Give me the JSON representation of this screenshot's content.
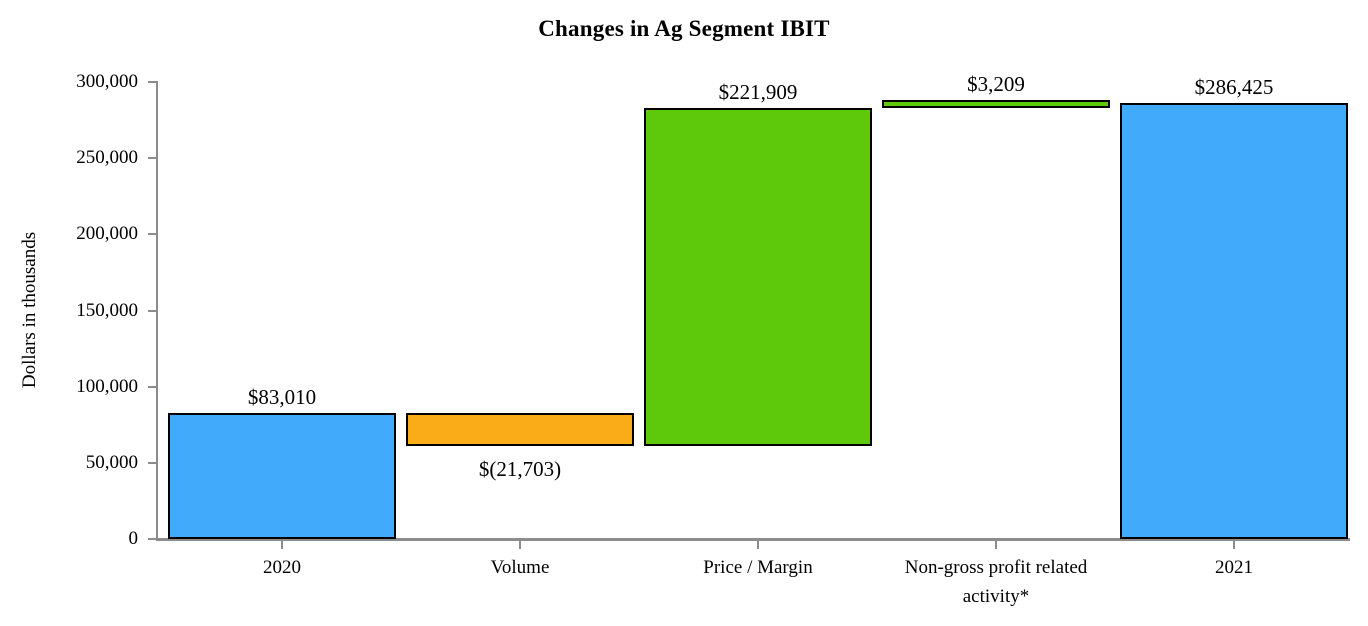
{
  "chart_data": {
    "type": "bar",
    "subtype": "waterfall",
    "title": "Changes in Ag Segment IBIT",
    "xlabel": "",
    "ylabel": "Dollars in thousands",
    "ylim": [
      0,
      300000
    ],
    "ytick_step": 50000,
    "yticks": [
      0,
      50000,
      100000,
      150000,
      200000,
      250000,
      300000
    ],
    "ytick_labels": [
      "0",
      "50,000",
      "100,000",
      "150,000",
      "200,000",
      "250,000",
      "300,000"
    ],
    "grid": false,
    "legend": false,
    "categories": [
      "2020",
      "Volume",
      "Price / Margin",
      "Non-gross profit related activity*",
      "2021"
    ],
    "bars": [
      {
        "category": "2020",
        "value": 83010,
        "start": 0,
        "end": 83010,
        "kind": "total",
        "color_key": "blue",
        "data_label": "$83,010",
        "label_position": "above"
      },
      {
        "category": "Volume",
        "value": -21703,
        "start": 83010,
        "end": 61307,
        "kind": "decrease",
        "color_key": "orange",
        "data_label": "$(21,703)",
        "label_position": "below"
      },
      {
        "category": "Price / Margin",
        "value": 221909,
        "start": 61307,
        "end": 283216,
        "kind": "increase",
        "color_key": "green",
        "data_label": "$221,909",
        "label_position": "above"
      },
      {
        "category": "Non-gross profit related activity*",
        "value": 3209,
        "start": 283216,
        "end": 286425,
        "kind": "increase",
        "color_key": "green",
        "data_label": "$3,209",
        "label_position": "above"
      },
      {
        "category": "2021",
        "value": 286425,
        "start": 0,
        "end": 286425,
        "kind": "total",
        "color_key": "blue",
        "data_label": "$286,425",
        "label_position": "above"
      }
    ],
    "colors": {
      "blue": "#41aafb",
      "orange": "#faac18",
      "green": "#5ec90a",
      "bar_border": "#000000",
      "axis": "#8c8c8c",
      "text": "#000000",
      "background": "#ffffff"
    }
  }
}
